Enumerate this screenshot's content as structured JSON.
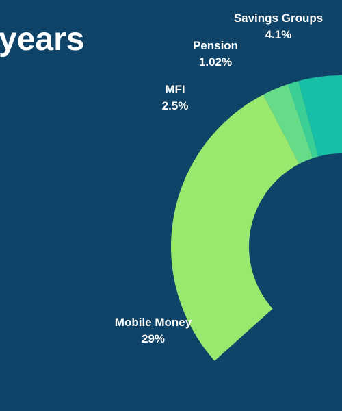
{
  "title": "years",
  "chart_data": {
    "type": "pie",
    "donut": true,
    "categories": [
      "Savings Groups",
      "Pension",
      "MFI",
      "Mobile Money"
    ],
    "values": [
      4.1,
      1.02,
      2.5,
      29
    ],
    "value_labels": [
      "4.1%",
      "1.02%",
      "2.5%",
      "29%"
    ],
    "colors": [
      "#16bfa5",
      "#3ccf95",
      "#67dc88",
      "#9be86f"
    ],
    "cropped_slice": {
      "color": "#f5f556"
    }
  }
}
